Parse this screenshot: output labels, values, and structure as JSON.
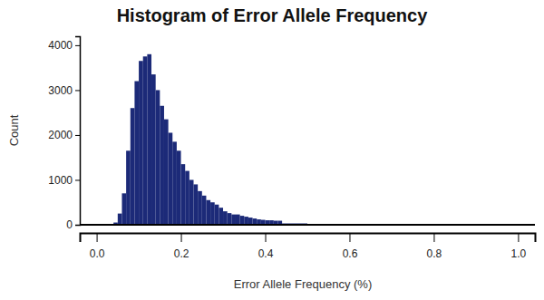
{
  "chart_data": {
    "type": "histogram",
    "title": "Histogram of Error Allele Frequency",
    "x_label": "Error Allele Frequency (%)",
    "y_label": "Count",
    "bins": [
      0.04,
      0.05,
      0.06,
      0.07,
      0.08,
      0.09,
      0.1,
      0.11,
      0.12,
      0.13,
      0.14,
      0.15,
      0.16,
      0.17,
      0.18,
      0.19,
      0.2,
      0.21,
      0.22,
      0.23,
      0.24,
      0.25,
      0.26,
      0.27,
      0.28,
      0.29,
      0.3,
      0.31,
      0.32,
      0.33,
      0.34,
      0.35,
      0.36,
      0.37,
      0.38,
      0.39,
      0.4,
      0.41,
      0.42,
      0.43,
      0.44,
      0.5,
      0.6,
      0.7,
      0.8,
      0.9,
      1.0,
      1.04
    ],
    "values": [
      50,
      250,
      700,
      1650,
      2600,
      3200,
      3650,
      3750,
      3800,
      3350,
      3000,
      2650,
      2350,
      2050,
      1850,
      1650,
      1350,
      1200,
      1000,
      900,
      750,
      650,
      550,
      500,
      450,
      380,
      300,
      260,
      230,
      230,
      200,
      180,
      160,
      140,
      120,
      110,
      100,
      100,
      90,
      90,
      30,
      20,
      12,
      8,
      5,
      4,
      2
    ],
    "color": "#1c2a78",
    "xlim": [
      -0.04,
      1.04
    ],
    "xticks": [
      {
        "value": 0,
        "label": "0.0"
      },
      0.2,
      0.4,
      0.6,
      0.8,
      {
        "value": 1,
        "label": "1.0"
      }
    ],
    "ylim": [
      0,
      4200
    ],
    "yticks": [
      0,
      1000,
      2000,
      3000,
      4000
    ],
    "grid": false
  }
}
